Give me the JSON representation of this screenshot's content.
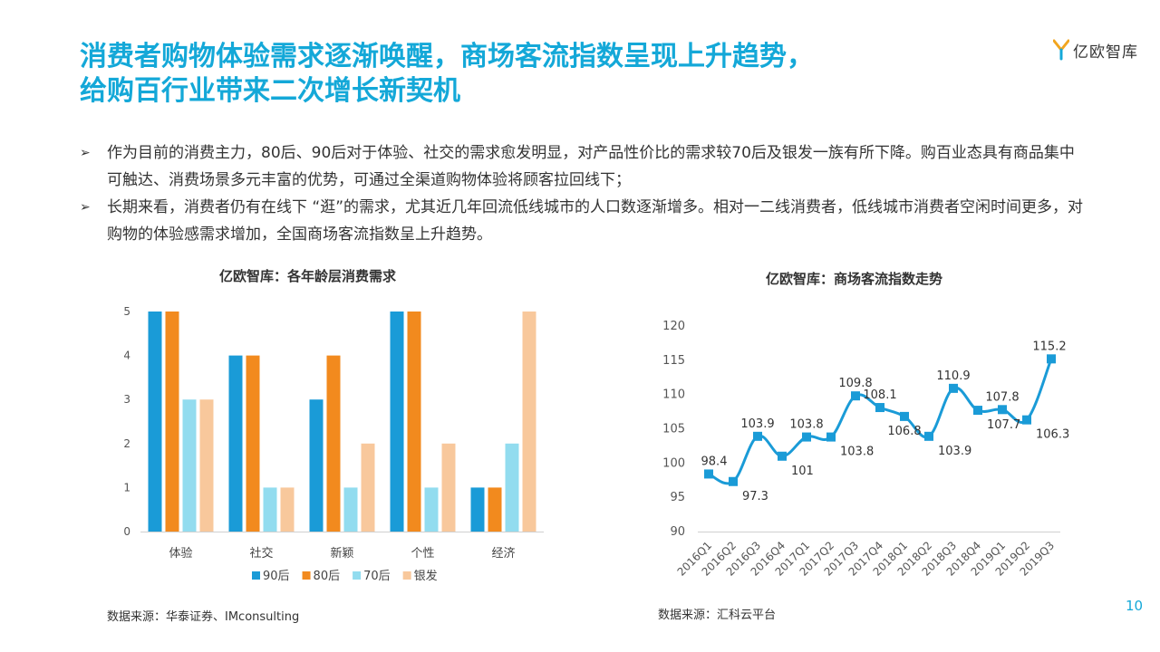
{
  "header": {
    "title_line1": "消费者购物体验需求逐渐唤醒，商场客流指数呈现上升趋势，",
    "title_line2": "给购百行业带来二次增长新契机",
    "logo_text": "亿欧智库",
    "title_color": "#14a8d8"
  },
  "bullets": [
    {
      "mark": "➢",
      "text": "作为目前的消费主力，80后、90后对于体验、社交的需求愈发明显，对产品性价比的需求较70后及银发一族有所下降。购百业态具有商品集中可触达、消费场景多元丰富的优势，可通过全渠道购物体验将顾客拉回线下；"
    },
    {
      "mark": "➢",
      "text": "长期来看，消费者仍有在线下 “逛”的需求，尤其近几年回流低线城市的人口数逐渐增多。相对一二线消费者，低线城市消费者空闲时间更多，对购物的体验感需求增加，全国商场客流指数呈上升趋势。"
    }
  ],
  "chart_data": [
    {
      "type": "bar",
      "title": "亿欧智库：各年龄层消费需求",
      "categories": [
        "体验",
        "社交",
        "新颖",
        "个性",
        "经济"
      ],
      "series": [
        {
          "name": "90后",
          "values": [
            5,
            4,
            3,
            5,
            1
          ],
          "color": "#1a9bd7"
        },
        {
          "name": "80后",
          "values": [
            5,
            4,
            4,
            5,
            1
          ],
          "color": "#f28a1e"
        },
        {
          "name": "70后",
          "values": [
            3,
            1,
            1,
            1,
            2
          ],
          "color": "#92dcef"
        },
        {
          "name": "银发",
          "values": [
            3,
            1,
            2,
            2,
            5
          ],
          "color": "#f8c89c"
        }
      ],
      "ylim": [
        0,
        5
      ],
      "yticks": [
        "0",
        "1",
        "2",
        "3",
        "4",
        "5"
      ],
      "legend": "bottom",
      "source": "数据来源：华泰证券、IMconsulting"
    },
    {
      "type": "line",
      "title": "亿欧智库：商场客流指数走势",
      "x": [
        "2016Q1",
        "2016Q2",
        "2016Q3",
        "2016Q4",
        "2017Q1",
        "2017Q2",
        "2017Q3",
        "2017Q4",
        "2018Q1",
        "2018Q2",
        "2018Q3",
        "2018Q4",
        "2019Q1",
        "2019Q2",
        "2019Q3"
      ],
      "values": [
        98.4,
        97.3,
        103.9,
        101,
        103.8,
        103.8,
        109.8,
        108.1,
        106.8,
        103.9,
        110.9,
        107.7,
        107.8,
        106.3,
        115.2
      ],
      "labels": [
        "98.4",
        "97.3",
        "103.9",
        "101",
        "103.8",
        "103.8",
        "109.8",
        "108.1",
        "106.8",
        "103.9",
        "110.9",
        "107.7",
        "107.8",
        "106.3",
        "115.2"
      ],
      "ylim": [
        90,
        120
      ],
      "yticks": [
        "90",
        "95",
        "100",
        "105",
        "110",
        "115",
        "120"
      ],
      "color": "#1a9bd7",
      "source": "数据来源：汇科云平台"
    }
  ],
  "page_number": "10"
}
